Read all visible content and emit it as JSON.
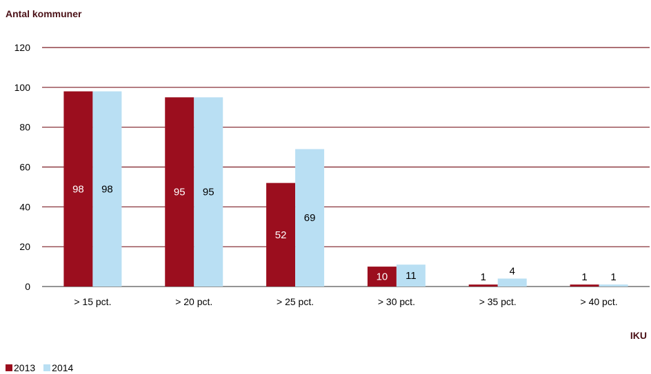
{
  "chart_data": {
    "type": "bar",
    "ylabel": "Antal kommuner",
    "xlabel": "IKU",
    "categories": [
      "> 15 pct.",
      "> 20 pct.",
      "> 25 pct.",
      "> 30 pct.",
      "> 35 pct.",
      "> 40 pct."
    ],
    "series": [
      {
        "name": "2013",
        "values": [
          98,
          95,
          52,
          10,
          1,
          1
        ],
        "color": "#9b0e1e"
      },
      {
        "name": "2014",
        "values": [
          98,
          95,
          69,
          11,
          4,
          1
        ],
        "color": "#b9dff3"
      }
    ],
    "ylim": [
      0,
      120
    ],
    "yticks": [
      0,
      20,
      40,
      60,
      80,
      100,
      120
    ],
    "grid": true,
    "gridline_color": "#7a1a22",
    "legend_position": "bottom-left"
  }
}
